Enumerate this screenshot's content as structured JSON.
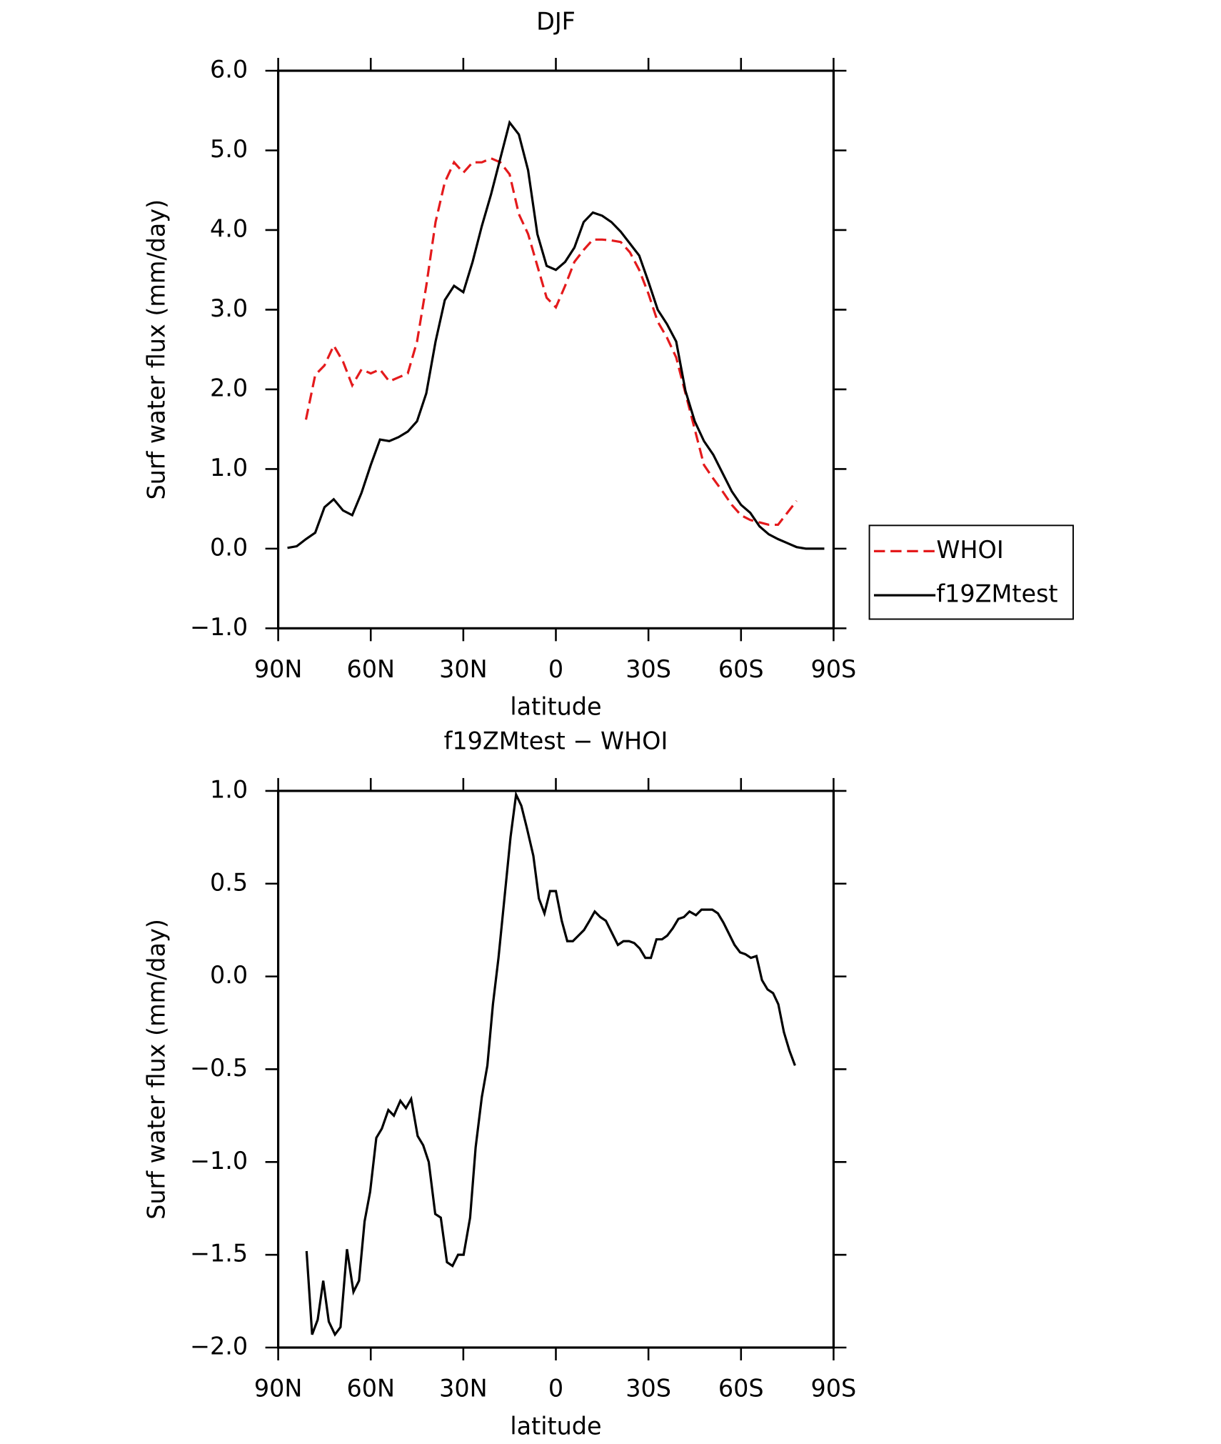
{
  "chart_data": [
    {
      "type": "line",
      "title": "DJF",
      "xlabel": "latitude",
      "ylabel": "Surf water flux (mm/day)",
      "x": [
        87,
        84,
        81,
        78,
        75,
        72,
        69,
        66,
        63,
        60,
        57,
        54,
        51,
        48,
        45,
        42,
        39,
        36,
        33,
        30,
        27,
        24,
        21,
        18,
        15,
        12,
        9,
        6,
        3,
        0,
        -3,
        -6,
        -9,
        -12,
        -15,
        -18,
        -21,
        -24,
        -27,
        -30,
        -33,
        -36,
        -39,
        -42,
        -45,
        -48,
        -51,
        -54,
        -57,
        -60,
        -63,
        -66,
        -69,
        -72,
        -75,
        -78,
        -81,
        -84,
        -87
      ],
      "series": [
        {
          "name": "WHOI",
          "color": "#e41a1c",
          "linestyle": "dashed",
          "values": [
            null,
            null,
            1.62,
            2.18,
            2.3,
            2.55,
            2.35,
            2.05,
            2.25,
            2.2,
            2.25,
            2.1,
            2.15,
            2.2,
            2.6,
            3.3,
            4.1,
            4.6,
            4.85,
            4.72,
            4.85,
            4.85,
            4.9,
            4.85,
            4.7,
            4.2,
            3.95,
            3.55,
            3.15,
            3.03,
            3.3,
            3.6,
            3.75,
            3.88,
            3.88,
            3.87,
            3.85,
            3.72,
            3.5,
            3.2,
            2.85,
            2.65,
            2.4,
            1.95,
            1.5,
            1.05,
            0.88,
            0.72,
            0.55,
            0.42,
            0.36,
            0.33,
            0.3,
            0.3,
            0.45,
            0.6,
            null,
            null,
            null
          ]
        },
        {
          "name": "f19ZMtest",
          "color": "#000000",
          "linestyle": "solid",
          "values": [
            0.01,
            0.03,
            0.12,
            0.2,
            0.52,
            0.62,
            0.48,
            0.42,
            0.7,
            1.05,
            1.37,
            1.35,
            1.4,
            1.47,
            1.6,
            1.95,
            2.6,
            3.12,
            3.3,
            3.22,
            3.6,
            4.05,
            4.45,
            4.9,
            5.35,
            5.2,
            4.75,
            3.95,
            3.55,
            3.5,
            3.6,
            3.78,
            4.1,
            4.22,
            4.18,
            4.1,
            3.98,
            3.83,
            3.68,
            3.35,
            3.0,
            2.82,
            2.6,
            1.98,
            1.6,
            1.35,
            1.18,
            0.95,
            0.72,
            0.55,
            0.45,
            0.28,
            0.18,
            0.12,
            0.07,
            0.02,
            0,
            0,
            0
          ]
        }
      ],
      "xlim": [
        90,
        -90
      ],
      "xticks": [
        {
          "value": 90,
          "label": "90N"
        },
        {
          "value": 60,
          "label": "60N"
        },
        {
          "value": 30,
          "label": "30N"
        },
        0,
        {
          "value": -30,
          "label": "30S"
        },
        {
          "value": -60,
          "label": "60S"
        },
        {
          "value": -90,
          "label": "90S"
        }
      ],
      "ylim": [
        -1,
        6
      ],
      "yticks": [
        {
          "value": -1,
          "label": "−1.0"
        },
        {
          "value": 0,
          "label": "0.0"
        },
        {
          "value": 1,
          "label": "1.0"
        },
        {
          "value": 2,
          "label": "2.0"
        },
        {
          "value": 3,
          "label": "3.0"
        },
        {
          "value": 4,
          "label": "4.0"
        },
        {
          "value": 5,
          "label": "5.0"
        },
        {
          "value": 6,
          "label": "6.0"
        }
      ],
      "legend": "right"
    },
    {
      "type": "line",
      "title": "f19ZMtest − WHOI",
      "xlabel": "latitude",
      "ylabel": "Surf water flux (mm/day)",
      "x": [
        80.8,
        79.0,
        77.2,
        75.4,
        73.6,
        71.6,
        69.8,
        67.7,
        65.6,
        63.8,
        62.0,
        60.2,
        58.2,
        56.4,
        54.3,
        52.5,
        50.4,
        48.6,
        46.9,
        44.8,
        43.0,
        41.2,
        39.1,
        37.3,
        35.3,
        33.5,
        31.7,
        29.9,
        27.8,
        26.0,
        24.0,
        22.2,
        20.4,
        18.6,
        16.8,
        14.7,
        12.9,
        11.2,
        9.4,
        7.3,
        5.5,
        3.7,
        1.9,
        0.0,
        -1.9,
        -3.7,
        -5.5,
        -7.3,
        -9.1,
        -10.9,
        -12.6,
        -14.4,
        -16.2,
        -18.3,
        -20.1,
        -21.9,
        -23.7,
        -25.4,
        -27.2,
        -29.0,
        -30.8,
        -32.6,
        -34.4,
        -36.1,
        -37.9,
        -39.7,
        -41.5,
        -43.3,
        -45.4,
        -47.2,
        -48.9,
        -50.7,
        -52.5,
        -54.3,
        -56.1,
        -57.9,
        -59.7,
        -61.4,
        -63.2,
        -65.0,
        -66.8,
        -68.6,
        -70.4,
        -72.1,
        -73.9,
        -75.7,
        -77.5
      ],
      "series": [
        {
          "color": "#000000",
          "linestyle": "solid",
          "values": [
            -1.48,
            -1.93,
            -1.85,
            -1.64,
            -1.86,
            -1.93,
            -1.89,
            -1.47,
            -1.7,
            -1.64,
            -1.32,
            -1.16,
            -0.87,
            -0.82,
            -0.72,
            -0.75,
            -0.67,
            -0.71,
            -0.66,
            -0.86,
            -0.91,
            -1.0,
            -1.28,
            -1.3,
            -1.54,
            -1.56,
            -1.5,
            -1.5,
            -1.3,
            -0.92,
            -0.65,
            -0.48,
            -0.15,
            0.1,
            0.4,
            0.75,
            0.98,
            0.92,
            0.8,
            0.65,
            0.42,
            0.34,
            0.46,
            0.46,
            0.3,
            0.19,
            0.19,
            0.22,
            0.25,
            0.3,
            0.35,
            0.32,
            0.3,
            0.23,
            0.17,
            0.19,
            0.19,
            0.18,
            0.15,
            0.1,
            0.1,
            0.2,
            0.2,
            0.22,
            0.26,
            0.31,
            0.32,
            0.35,
            0.33,
            0.36,
            0.36,
            0.36,
            0.34,
            0.29,
            0.23,
            0.17,
            0.13,
            0.12,
            0.1,
            0.11,
            -0.02,
            -0.07,
            -0.09,
            -0.15,
            -0.3,
            -0.4,
            -0.48
          ]
        }
      ],
      "xlim": [
        90,
        -90
      ],
      "xticks": [
        {
          "value": 90,
          "label": "90N"
        },
        {
          "value": 60,
          "label": "60N"
        },
        {
          "value": 30,
          "label": "30N"
        },
        0,
        {
          "value": -30,
          "label": "30S"
        },
        {
          "value": -60,
          "label": "60S"
        },
        {
          "value": -90,
          "label": "90S"
        }
      ],
      "ylim": [
        -2,
        1
      ],
      "yticks": [
        {
          "value": -2,
          "label": "−2.0"
        },
        {
          "value": -1.5,
          "label": "−1.5"
        },
        {
          "value": -1,
          "label": "−1.0"
        },
        {
          "value": -0.5,
          "label": "−0.5"
        },
        {
          "value": 0,
          "label": "0.0"
        },
        {
          "value": 0.5,
          "label": "0.5"
        },
        {
          "value": 1,
          "label": "1.0"
        }
      ]
    }
  ]
}
